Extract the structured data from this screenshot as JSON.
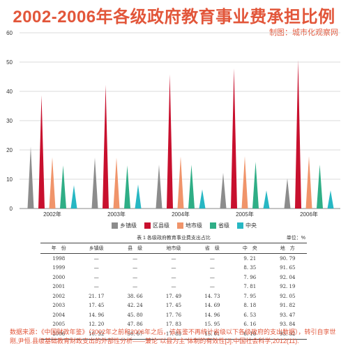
{
  "title": "2002-2006年各级政府教育事业费承担比例",
  "credit": "制图：城市化观察网",
  "colors": {
    "title": "#e2563a",
    "series": [
      "#8c8c8c",
      "#c8102e",
      "#f0946a",
      "#2fae86",
      "#27b7c3"
    ]
  },
  "chart_data": {
    "type": "bar",
    "categories": [
      "2002年",
      "2003年",
      "2004年",
      "2005年",
      "2006年"
    ],
    "series": [
      {
        "name": "乡镇级",
        "values": [
          21.17,
          17.45,
          14.96,
          12.2,
          10.32
        ]
      },
      {
        "name": "区县级",
        "values": [
          38.66,
          42.24,
          45.8,
          47.86,
          50.67
        ]
      },
      {
        "name": "地市级",
        "values": [
          17.49,
          17.45,
          17.76,
          17.83,
          17.83
        ]
      },
      {
        "name": "省级",
        "values": [
          14.73,
          14.69,
          14.96,
          15.95,
          15.01
        ]
      },
      {
        "name": "中央",
        "values": [
          7.95,
          8.18,
          6.53,
          6.16,
          6.18
        ]
      }
    ],
    "yticks": [
      "0",
      "10",
      "20",
      "30",
      "40",
      "50",
      "60"
    ],
    "ylim": [
      0,
      60
    ],
    "grid": true,
    "legend": "bottom"
  },
  "legend": {
    "items": [
      "乡镇级",
      "区县级",
      "地市级",
      "省级",
      "中央"
    ]
  },
  "table": {
    "caption": "表 1   各级政府教育事业费支出占比",
    "unit": "单位：%",
    "headers": [
      "年　份",
      "乡镇级",
      "县　级",
      "地市级",
      "省　级",
      "中　央",
      "地　方"
    ],
    "rows": [
      [
        "1998",
        "—",
        "—",
        "—",
        "—",
        "9. 21",
        "90. 79"
      ],
      [
        "1999",
        "—",
        "—",
        "—",
        "—",
        "8. 35",
        "91. 65"
      ],
      [
        "2000",
        "—",
        "—",
        "—",
        "—",
        "7. 96",
        "92. 04"
      ],
      [
        "2001",
        "—",
        "—",
        "—",
        "—",
        "7. 81",
        "92. 19"
      ],
      [
        "2002",
        "21. 17",
        "38. 66",
        "17. 49",
        "14. 73",
        "7. 95",
        "92. 05"
      ],
      [
        "2003",
        "17. 45",
        "42. 24",
        "17. 45",
        "14. 69",
        "8. 18",
        "91. 82"
      ],
      [
        "2004",
        "14. 96",
        "45. 80",
        "17. 76",
        "14. 96",
        "6. 53",
        "93. 47"
      ],
      [
        "2005",
        "12. 20",
        "47. 86",
        "17. 83",
        "15. 95",
        "6. 16",
        "93. 84"
      ],
      [
        "2006",
        "10. 32",
        "50. 67",
        "17. 83",
        "15. 01",
        "6. 18",
        "93. 82"
      ]
    ]
  },
  "source": "数据来源：《中国财政年鉴》（2002年之前和2006年之后，该年鉴不再统计省级以下各级政府的支出数据），转引自李世刚,尹恒.县级基础教育财政支出的外部性分析——兼论\"以县为主\"体制的有效性[J].中国社会科学,2012(11)."
}
